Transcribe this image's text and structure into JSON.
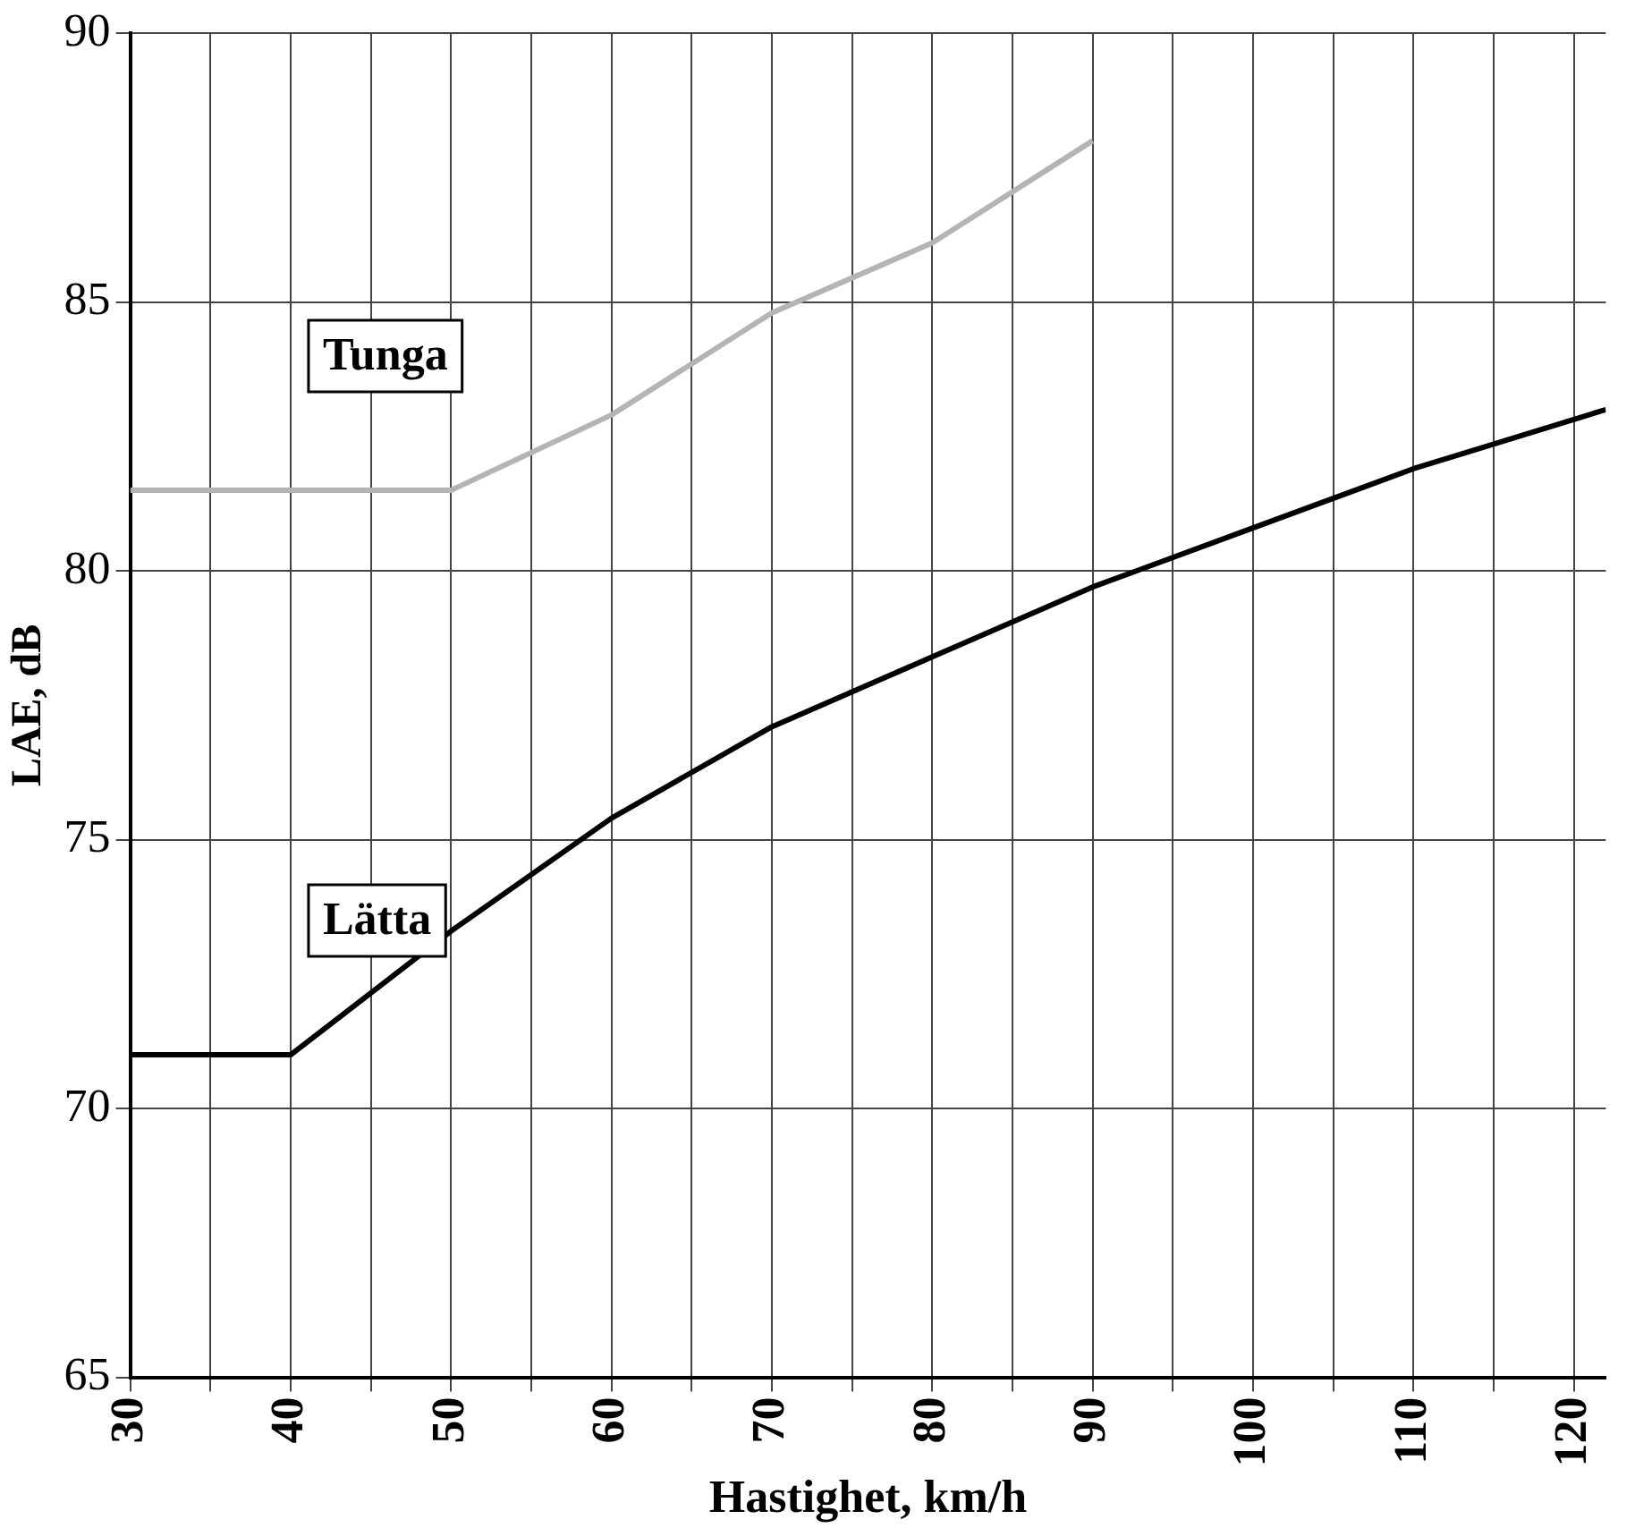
{
  "chart_data": {
    "type": "line",
    "xlabel": "Hastighet, km/h",
    "ylabel": "LAE, dB",
    "xlim": [
      30,
      122
    ],
    "ylim": [
      65,
      90
    ],
    "xticks": [
      30,
      {
        "value": 35,
        "label": null
      },
      40,
      {
        "value": 45,
        "label": null
      },
      50,
      {
        "value": 55,
        "label": null
      },
      60,
      {
        "value": 65,
        "label": null
      },
      70,
      {
        "value": 75,
        "label": null
      },
      80,
      {
        "value": 85,
        "label": null
      },
      90,
      {
        "value": 95,
        "label": null
      },
      100,
      {
        "value": 105,
        "label": null
      },
      110,
      {
        "value": 115,
        "label": null
      },
      120
    ],
    "yticks": [
      65,
      70,
      75,
      80,
      85,
      90
    ],
    "grid": true,
    "legend": false,
    "marker": "none",
    "series": [
      {
        "name": "Tunga",
        "color": "#b4b4b4",
        "x": [
          30,
          40,
          50,
          60,
          70,
          80,
          90
        ],
        "values": [
          81.5,
          81.5,
          81.5,
          82.9,
          84.8,
          86.1,
          88.0
        ]
      },
      {
        "name": "Lätta",
        "color": "#000000",
        "x": [
          30,
          40,
          50,
          60,
          70,
          80,
          90,
          100,
          110,
          122
        ],
        "values": [
          71.0,
          71.0,
          73.3,
          75.4,
          77.1,
          78.4,
          79.7,
          80.8,
          81.9,
          83.0
        ]
      }
    ]
  }
}
